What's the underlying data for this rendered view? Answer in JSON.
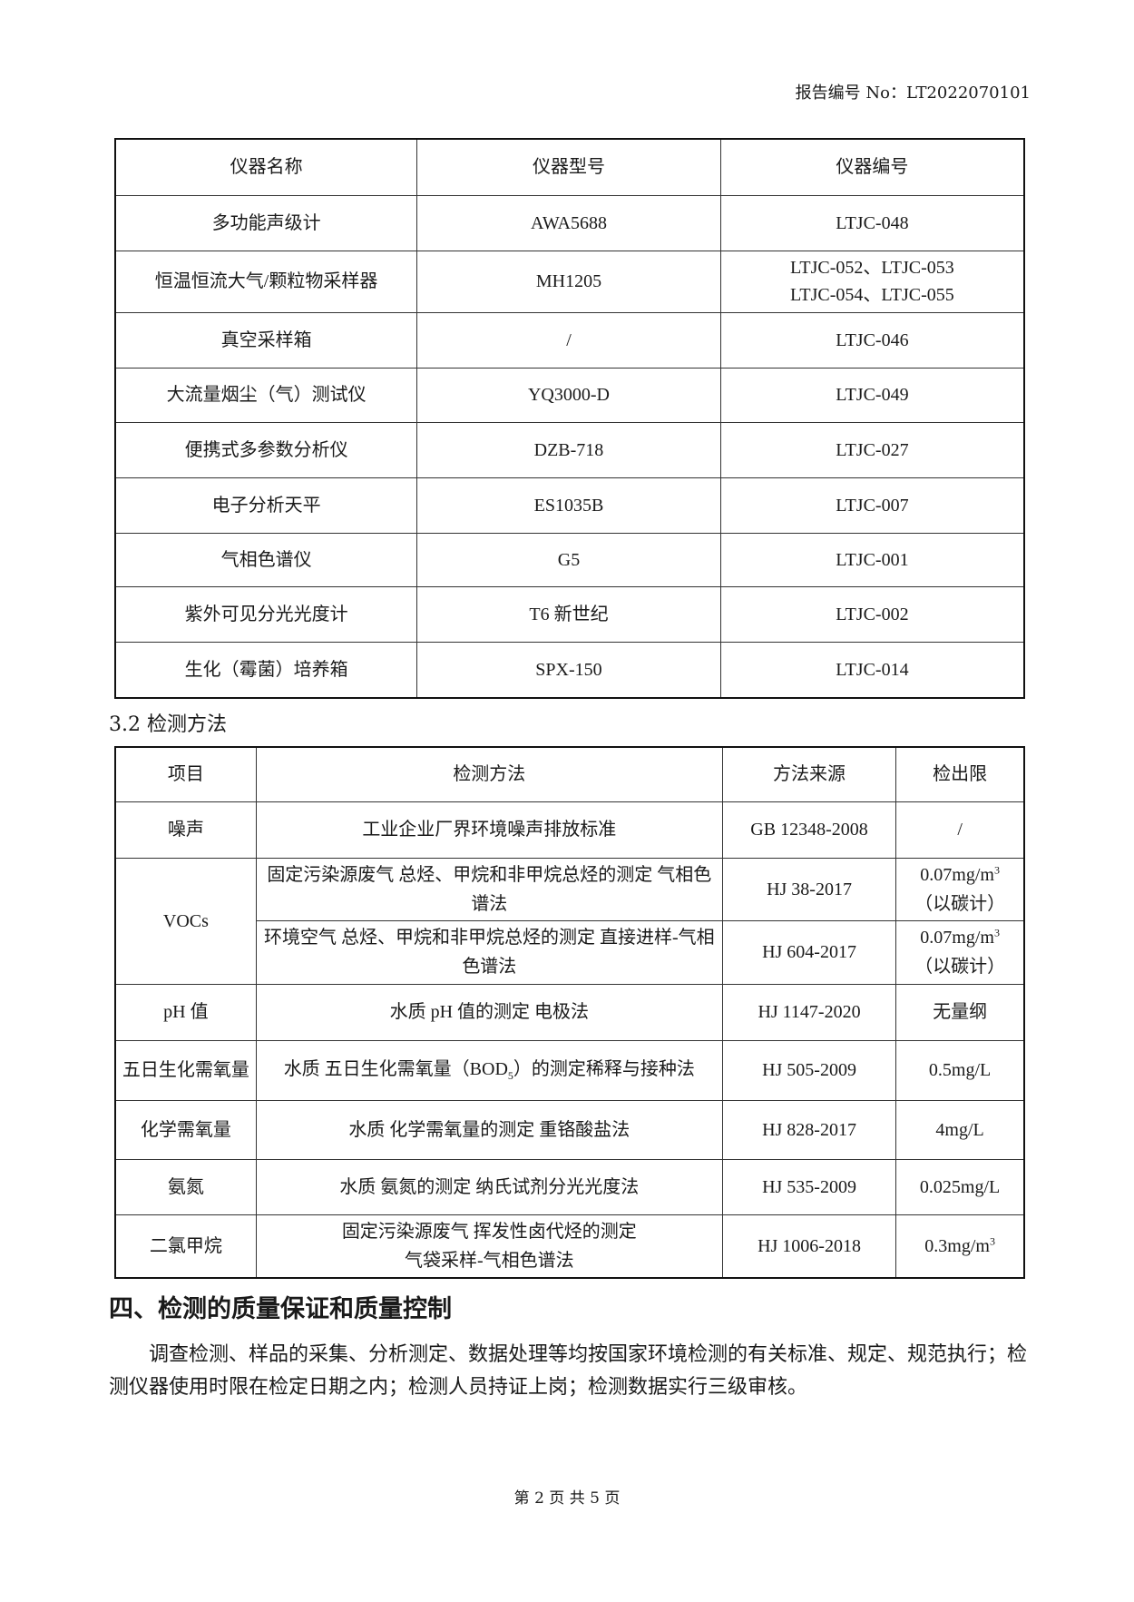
{
  "header": {
    "report_no": "报告编号 No：LT2022070101"
  },
  "instruments": {
    "columns": [
      "仪器名称",
      "仪器型号",
      "仪器编号"
    ],
    "rows": [
      [
        "多功能声级计",
        "AWA5688",
        "LTJC-048"
      ],
      [
        "恒温恒流大气/颗粒物采样器",
        "MH1205",
        "LTJC-052、LTJC-053",
        "LTJC-054、LTJC-055"
      ],
      [
        "真空采样箱",
        "/",
        "LTJC-046"
      ],
      [
        "大流量烟尘（气）测试仪",
        "YQ3000-D",
        "LTJC-049"
      ],
      [
        "便携式多参数分析仪",
        "DZB-718",
        "LTJC-027"
      ],
      [
        "电子分析天平",
        "ES1035B",
        "LTJC-007"
      ],
      [
        "气相色谱仪",
        "G5",
        "LTJC-001"
      ],
      [
        "紫外可见分光光度计",
        "T6 新世纪",
        "LTJC-002"
      ],
      [
        "生化（霉菌）培养箱",
        "SPX-150",
        "LTJC-014"
      ]
    ]
  },
  "methods": {
    "section_title": "3.2 检测方法",
    "columns": [
      "项目",
      "检测方法",
      "方法来源",
      "检出限"
    ],
    "noise": [
      "噪声",
      "工业企业厂界环境噪声排放标准",
      "GB 12348-2008",
      "/"
    ],
    "vocs": {
      "item": "VOCs",
      "r1": [
        "固定污染源废气  总烃、甲烷和非甲烷总烃的测定  气相色谱法",
        "HJ 38-2017",
        "0.07mg/m",
        "3",
        "（以碳计）"
      ],
      "r2": [
        "环境空气  总烃、甲烷和非甲烷总烃的测定  直接进样-气相色谱法",
        "HJ 604-2017",
        "0.07mg/m",
        "3",
        "（以碳计）"
      ]
    },
    "ph": [
      "pH 值",
      "水质  pH 值的测定  电极法",
      "HJ 1147-2020",
      "无量纲"
    ],
    "bod": [
      "五日生化需氧量",
      "水质  五日生化需氧量（BOD",
      "5",
      "）的测定稀释与接种法",
      "HJ 505-2009",
      "0.5mg/L"
    ],
    "cod": [
      "化学需氧量",
      "水质  化学需氧量的测定  重铬酸盐法",
      "HJ 828-2017",
      "4mg/L"
    ],
    "nh3": [
      "氨氮",
      "水质  氨氮的测定  纳氏试剂分光光度法",
      "HJ 535-2009",
      "0.025mg/L"
    ],
    "dcm": [
      "二氯甲烷",
      "固定污染源废气  挥发性卤代烃的测定",
      "气袋采样-气相色谱法",
      "HJ 1006-2018",
      "0.3mg/m",
      "3"
    ]
  },
  "quality": {
    "heading": "四、检测的质量保证和质量控制",
    "text": "调查检测、样品的采集、分析测定、数据处理等均按国家环境检测的有关标准、规定、规范执行；检测仪器使用时限在检定日期之内；检测人员持证上岗；检测数据实行三级审核。"
  },
  "footer": {
    "page": "第 2 页 共 5 页"
  }
}
